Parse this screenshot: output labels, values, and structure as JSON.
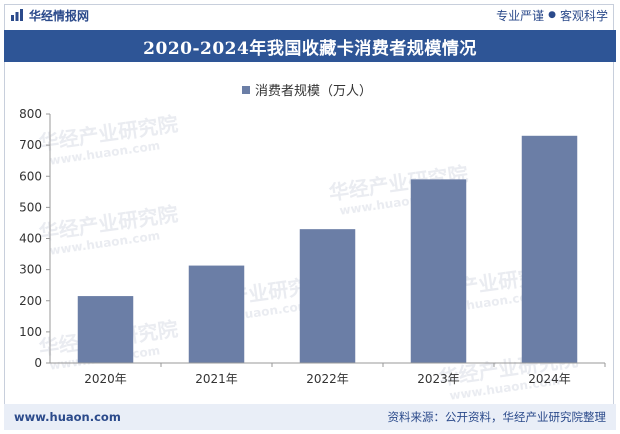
{
  "header": {
    "brand": "华经情报网",
    "slogan_left": "专业严谨",
    "slogan_sep": "●",
    "slogan_right": "客观科学"
  },
  "title": "2020-2024年我国收藏卡消费者规模情况",
  "footer": {
    "url": "www.huaon.com",
    "source": "资料来源：公开资料，华经产业研究院整理"
  },
  "watermark": {
    "cn": "华经产业研究院",
    "en": "www.huaon.com"
  },
  "colors": {
    "bar": "#6b7ea6",
    "title_band": "#2e5596",
    "brand": "#2b4a8b"
  },
  "chart_data": {
    "type": "bar",
    "categories": [
      "2020年",
      "2021年",
      "2022年",
      "2023年",
      "2024年"
    ],
    "series": [
      {
        "name": "消费者规模（万人）",
        "values": [
          215,
          313,
          430,
          590,
          730
        ]
      }
    ],
    "ylim": [
      0,
      800
    ],
    "yticks": [
      0,
      100,
      200,
      300,
      400,
      500,
      600,
      700,
      800
    ],
    "xlabel": "",
    "ylabel": "",
    "legend": "top-center",
    "grid": false
  }
}
